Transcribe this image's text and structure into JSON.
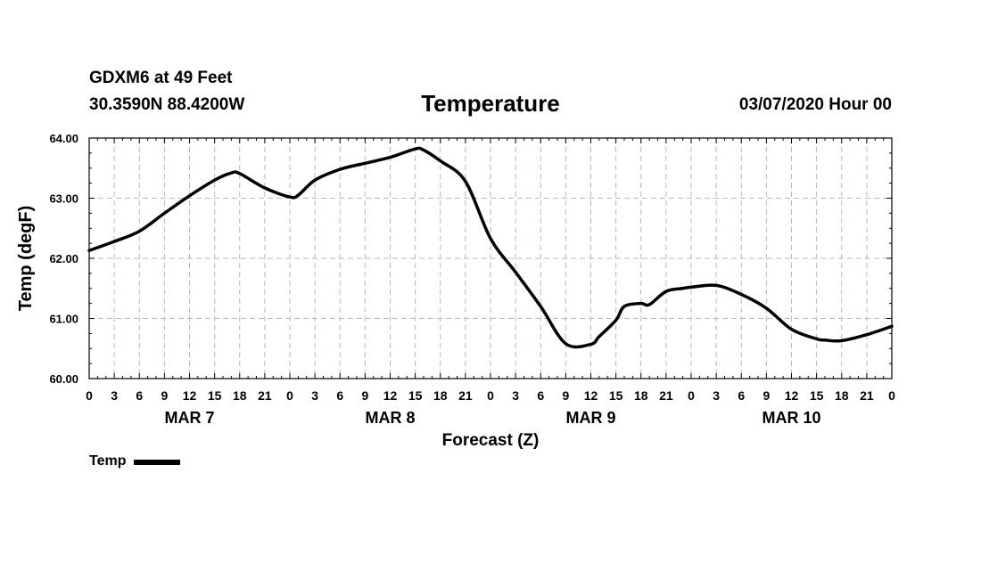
{
  "header": {
    "station": "GDXM6 at 49 Feet",
    "coordinates": "30.3590N 88.4200W",
    "title": "Temperature",
    "issued": "03/07/2020 Hour 00"
  },
  "chart_data": {
    "type": "line",
    "title": "Temperature",
    "xlabel": "Forecast (Z)",
    "ylabel": "Temp (degF)",
    "ylim": [
      60,
      64
    ],
    "yticks": [
      "60.00",
      "61.00",
      "62.00",
      "63.00",
      "64.00"
    ],
    "xlim": [
      0,
      96
    ],
    "x_tick_step_hours": 3,
    "x_tick_labels": [
      "0",
      "3",
      "6",
      "9",
      "12",
      "15",
      "18",
      "21",
      "0",
      "3",
      "6",
      "9",
      "12",
      "15",
      "18",
      "21",
      "0",
      "3",
      "6",
      "9",
      "12",
      "15",
      "18",
      "21",
      "0",
      "3",
      "6",
      "9",
      "12",
      "15",
      "18",
      "21",
      "0"
    ],
    "day_labels": [
      {
        "label": "MAR 7",
        "center_hour": 12
      },
      {
        "label": "MAR 8",
        "center_hour": 36
      },
      {
        "label": "MAR 9",
        "center_hour": 60
      },
      {
        "label": "MAR 10",
        "center_hour": 84
      }
    ],
    "grid": true,
    "legend_position": "bottom-left",
    "series": [
      {
        "name": "Temp",
        "color": "#000000",
        "x": [
          0,
          3,
          6,
          9,
          12,
          15,
          17,
          18,
          21,
          24,
          25,
          27,
          30,
          33,
          36,
          39,
          40,
          42,
          45,
          48,
          51,
          54,
          57,
          60,
          61,
          63,
          64,
          66,
          67,
          69,
          71,
          72,
          75,
          78,
          81,
          84,
          87,
          88,
          90,
          93,
          96
        ],
        "values": [
          62.13,
          62.28,
          62.45,
          62.75,
          63.04,
          63.3,
          63.42,
          63.41,
          63.17,
          63.02,
          63.05,
          63.3,
          63.48,
          63.58,
          63.68,
          63.82,
          63.8,
          63.62,
          63.28,
          62.33,
          61.77,
          61.2,
          60.58,
          60.57,
          60.7,
          60.97,
          61.2,
          61.25,
          61.23,
          61.45,
          61.5,
          61.52,
          61.55,
          61.4,
          61.17,
          60.82,
          60.66,
          60.64,
          60.63,
          60.73,
          60.87
        ]
      }
    ]
  },
  "legend": {
    "label": "Temp"
  }
}
